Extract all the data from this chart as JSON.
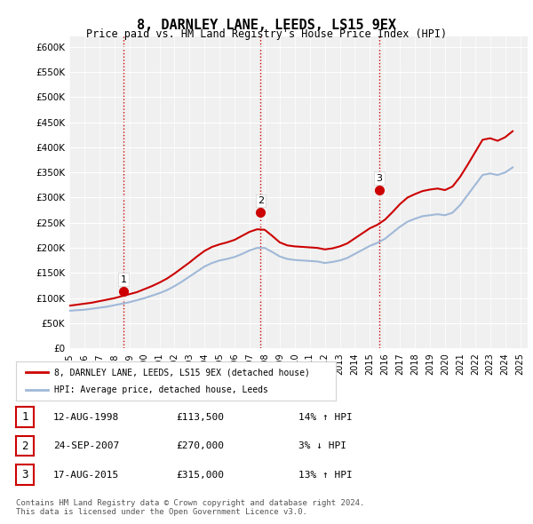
{
  "title": "8, DARNLEY LANE, LEEDS, LS15 9EX",
  "subtitle": "Price paid vs. HM Land Registry's House Price Index (HPI)",
  "xlim_start": 1995.0,
  "xlim_end": 2025.5,
  "ylim": [
    0,
    620000
  ],
  "yticks": [
    0,
    50000,
    100000,
    150000,
    200000,
    250000,
    300000,
    350000,
    400000,
    450000,
    500000,
    550000,
    600000
  ],
  "ytick_labels": [
    "£0",
    "£50K",
    "£100K",
    "£150K",
    "£200K",
    "£250K",
    "£300K",
    "£350K",
    "£400K",
    "£450K",
    "£500K",
    "£550K",
    "£600K"
  ],
  "background_color": "#ffffff",
  "plot_bg_color": "#f0f0f0",
  "grid_color": "#ffffff",
  "hpi_color": "#a0b8d8",
  "price_color": "#cc0000",
  "vline_color": "#cc0000",
  "sale_dates": [
    1998.617,
    2007.731,
    2015.636
  ],
  "sale_prices": [
    113500,
    270000,
    315000
  ],
  "sale_labels": [
    "1",
    "2",
    "3"
  ],
  "legend_label_price": "8, DARNLEY LANE, LEEDS, LS15 9EX (detached house)",
  "legend_label_hpi": "HPI: Average price, detached house, Leeds",
  "table_rows": [
    {
      "num": "1",
      "date": "12-AUG-1998",
      "price": "£113,500",
      "change": "14% ↑ HPI"
    },
    {
      "num": "2",
      "date": "24-SEP-2007",
      "price": "£270,000",
      "change": "3% ↓ HPI"
    },
    {
      "num": "3",
      "date": "17-AUG-2015",
      "price": "£315,000",
      "change": "13% ↑ HPI"
    }
  ],
  "footnote": "Contains HM Land Registry data © Crown copyright and database right 2024.\nThis data is licensed under the Open Government Licence v3.0.",
  "hpi_x": [
    1995.0,
    1995.5,
    1996.0,
    1996.5,
    1997.0,
    1997.5,
    1998.0,
    1998.5,
    1999.0,
    1999.5,
    2000.0,
    2000.5,
    2001.0,
    2001.5,
    2002.0,
    2002.5,
    2003.0,
    2003.5,
    2004.0,
    2004.5,
    2005.0,
    2005.5,
    2006.0,
    2006.5,
    2007.0,
    2007.5,
    2008.0,
    2008.5,
    2009.0,
    2009.5,
    2010.0,
    2010.5,
    2011.0,
    2011.5,
    2012.0,
    2012.5,
    2013.0,
    2013.5,
    2014.0,
    2014.5,
    2015.0,
    2015.5,
    2016.0,
    2016.5,
    2017.0,
    2017.5,
    2018.0,
    2018.5,
    2019.0,
    2019.5,
    2020.0,
    2020.5,
    2021.0,
    2021.5,
    2022.0,
    2022.5,
    2023.0,
    2023.5,
    2024.0,
    2024.5
  ],
  "hpi_y": [
    75000,
    76000,
    77000,
    79000,
    81000,
    83000,
    86000,
    89000,
    92000,
    96000,
    100000,
    105000,
    110000,
    116000,
    124000,
    133000,
    143000,
    153000,
    163000,
    170000,
    175000,
    178000,
    182000,
    188000,
    195000,
    200000,
    200000,
    192000,
    183000,
    178000,
    176000,
    175000,
    174000,
    173000,
    170000,
    172000,
    175000,
    180000,
    188000,
    196000,
    204000,
    210000,
    218000,
    230000,
    242000,
    252000,
    258000,
    263000,
    265000,
    267000,
    265000,
    270000,
    285000,
    305000,
    325000,
    345000,
    348000,
    345000,
    350000,
    360000
  ],
  "price_x": [
    1995.0,
    1995.5,
    1996.0,
    1996.5,
    1997.0,
    1997.5,
    1998.0,
    1998.5,
    1999.0,
    1999.5,
    2000.0,
    2000.5,
    2001.0,
    2001.5,
    2002.0,
    2002.5,
    2003.0,
    2003.5,
    2004.0,
    2004.5,
    2005.0,
    2005.5,
    2006.0,
    2006.5,
    2007.0,
    2007.5,
    2008.0,
    2008.5,
    2009.0,
    2009.5,
    2010.0,
    2010.5,
    2011.0,
    2011.5,
    2012.0,
    2012.5,
    2013.0,
    2013.5,
    2014.0,
    2014.5,
    2015.0,
    2015.5,
    2016.0,
    2016.5,
    2017.0,
    2017.5,
    2018.0,
    2018.5,
    2019.0,
    2019.5,
    2020.0,
    2020.5,
    2021.0,
    2021.5,
    2022.0,
    2022.5,
    2023.0,
    2023.5,
    2024.0,
    2024.5
  ],
  "price_y": [
    85000,
    87000,
    89000,
    91000,
    94000,
    97000,
    100000,
    104000,
    108000,
    112000,
    118000,
    124000,
    131000,
    139000,
    149000,
    160000,
    171000,
    183000,
    194000,
    202000,
    207000,
    211000,
    216000,
    224000,
    232000,
    237000,
    236000,
    224000,
    211000,
    205000,
    203000,
    202000,
    201000,
    200000,
    197000,
    199000,
    203000,
    209000,
    219000,
    229000,
    239000,
    246000,
    256000,
    271000,
    287000,
    300000,
    307000,
    313000,
    316000,
    318000,
    315000,
    322000,
    341000,
    365000,
    390000,
    415000,
    418000,
    413000,
    420000,
    432000
  ]
}
